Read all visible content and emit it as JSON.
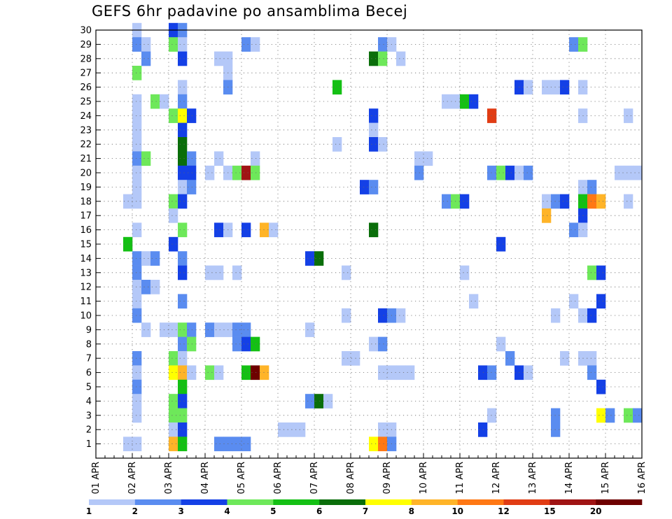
{
  "chart_data": {
    "type": "heatmap",
    "title": "GEFS 6hr padavine po ansamblima Becej",
    "xlabel": "",
    "ylabel": "",
    "x_ticks": [
      "01 APR",
      "02 APR",
      "03 APR",
      "04 APR",
      "05 APR",
      "06 APR",
      "07 APR",
      "08 APR",
      "09 APR",
      "10 APR",
      "11 APR",
      "12 APR",
      "13 APR",
      "14 APR",
      "15 APR",
      "16 APR"
    ],
    "y_ticks": [
      "1",
      "2",
      "3",
      "4",
      "5",
      "6",
      "7",
      "8",
      "9",
      "10",
      "11",
      "12",
      "13",
      "14",
      "15",
      "16",
      "17",
      "18",
      "19",
      "20",
      "21",
      "22",
      "23",
      "24",
      "25",
      "26",
      "27",
      "28",
      "29",
      "30"
    ],
    "xlim_steps": [
      0,
      60
    ],
    "ylim_members": [
      0,
      30
    ],
    "grid": true,
    "legend_position": "bottom",
    "scale": {
      "boundaries": [
        "1",
        "2",
        "3",
        "4",
        "5",
        "6",
        "7",
        "8",
        "10",
        "12",
        "15",
        "20"
      ],
      "colors": [
        "#b4c8f8",
        "#5a8cf0",
        "#1440e6",
        "#6ee85a",
        "#14c014",
        "#0a6e0a",
        "#ffff00",
        "#ffb428",
        "#ff7814",
        "#e13c14",
        "#a01414",
        "#6e0000"
      ]
    },
    "cells_format": "[step, member, class]",
    "cells": [
      [
        4,
        30,
        0
      ],
      [
        8,
        30,
        2
      ],
      [
        9,
        30,
        1
      ],
      [
        4,
        29,
        1
      ],
      [
        5,
        29,
        0
      ],
      [
        8,
        29,
        3
      ],
      [
        9,
        29,
        0
      ],
      [
        16,
        29,
        1
      ],
      [
        17,
        29,
        0
      ],
      [
        31,
        29,
        1
      ],
      [
        32,
        29,
        0
      ],
      [
        52,
        29,
        1
      ],
      [
        53,
        29,
        3
      ],
      [
        5,
        28,
        1
      ],
      [
        9,
        28,
        2
      ],
      [
        13,
        28,
        0
      ],
      [
        14,
        28,
        0
      ],
      [
        30,
        28,
        5
      ],
      [
        31,
        28,
        3
      ],
      [
        33,
        28,
        0
      ],
      [
        4,
        27,
        3
      ],
      [
        14,
        27,
        0
      ],
      [
        9,
        26,
        0
      ],
      [
        14,
        26,
        1
      ],
      [
        26,
        26,
        4
      ],
      [
        46,
        26,
        2
      ],
      [
        47,
        26,
        0
      ],
      [
        49,
        26,
        0
      ],
      [
        50,
        26,
        0
      ],
      [
        51,
        26,
        2
      ],
      [
        53,
        26,
        0
      ],
      [
        4,
        25,
        0
      ],
      [
        6,
        25,
        3
      ],
      [
        7,
        25,
        0
      ],
      [
        9,
        25,
        1
      ],
      [
        38,
        25,
        0
      ],
      [
        39,
        25,
        0
      ],
      [
        40,
        25,
        4
      ],
      [
        41,
        25,
        2
      ],
      [
        4,
        24,
        0
      ],
      [
        8,
        24,
        3
      ],
      [
        9,
        24,
        6
      ],
      [
        10,
        24,
        2
      ],
      [
        30,
        24,
        2
      ],
      [
        43,
        24,
        9
      ],
      [
        53,
        24,
        0
      ],
      [
        58,
        24,
        0
      ],
      [
        4,
        23,
        0
      ],
      [
        9,
        23,
        2
      ],
      [
        30,
        23,
        0
      ],
      [
        4,
        22,
        0
      ],
      [
        9,
        22,
        5
      ],
      [
        26,
        22,
        0
      ],
      [
        30,
        22,
        2
      ],
      [
        31,
        22,
        0
      ],
      [
        4,
        21,
        1
      ],
      [
        5,
        21,
        3
      ],
      [
        9,
        21,
        5
      ],
      [
        10,
        21,
        1
      ],
      [
        13,
        21,
        0
      ],
      [
        17,
        21,
        0
      ],
      [
        35,
        21,
        0
      ],
      [
        36,
        21,
        0
      ],
      [
        4,
        20,
        0
      ],
      [
        9,
        20,
        2
      ],
      [
        10,
        20,
        2
      ],
      [
        12,
        20,
        0
      ],
      [
        14,
        20,
        0
      ],
      [
        15,
        20,
        3
      ],
      [
        16,
        20,
        10
      ],
      [
        17,
        20,
        3
      ],
      [
        35,
        20,
        1
      ],
      [
        43,
        20,
        1
      ],
      [
        44,
        20,
        3
      ],
      [
        45,
        20,
        2
      ],
      [
        46,
        20,
        0
      ],
      [
        47,
        20,
        1
      ],
      [
        57,
        20,
        0
      ],
      [
        58,
        20,
        0
      ],
      [
        59,
        20,
        0
      ],
      [
        4,
        19,
        0
      ],
      [
        9,
        19,
        0
      ],
      [
        10,
        19,
        1
      ],
      [
        29,
        19,
        2
      ],
      [
        30,
        19,
        1
      ],
      [
        53,
        19,
        0
      ],
      [
        54,
        19,
        1
      ],
      [
        3,
        18,
        0
      ],
      [
        4,
        18,
        0
      ],
      [
        8,
        18,
        3
      ],
      [
        9,
        18,
        2
      ],
      [
        38,
        18,
        1
      ],
      [
        39,
        18,
        3
      ],
      [
        40,
        18,
        2
      ],
      [
        49,
        18,
        0
      ],
      [
        50,
        18,
        1
      ],
      [
        51,
        18,
        2
      ],
      [
        53,
        18,
        4
      ],
      [
        54,
        18,
        8
      ],
      [
        55,
        18,
        7
      ],
      [
        58,
        18,
        0
      ],
      [
        8,
        17,
        0
      ],
      [
        49,
        17,
        7
      ],
      [
        53,
        17,
        2
      ],
      [
        4,
        16,
        0
      ],
      [
        9,
        16,
        3
      ],
      [
        13,
        16,
        2
      ],
      [
        14,
        16,
        0
      ],
      [
        16,
        16,
        2
      ],
      [
        18,
        16,
        7
      ],
      [
        19,
        16,
        0
      ],
      [
        30,
        16,
        5
      ],
      [
        52,
        16,
        1
      ],
      [
        53,
        16,
        0
      ],
      [
        3,
        15,
        4
      ],
      [
        8,
        15,
        2
      ],
      [
        44,
        15,
        2
      ],
      [
        4,
        14,
        1
      ],
      [
        5,
        14,
        0
      ],
      [
        6,
        14,
        1
      ],
      [
        9,
        14,
        1
      ],
      [
        23,
        14,
        2
      ],
      [
        24,
        14,
        5
      ],
      [
        4,
        13,
        1
      ],
      [
        9,
        13,
        2
      ],
      [
        12,
        13,
        0
      ],
      [
        13,
        13,
        0
      ],
      [
        15,
        13,
        0
      ],
      [
        27,
        13,
        0
      ],
      [
        40,
        13,
        0
      ],
      [
        54,
        13,
        3
      ],
      [
        55,
        13,
        2
      ],
      [
        4,
        12,
        0
      ],
      [
        5,
        12,
        1
      ],
      [
        6,
        12,
        0
      ],
      [
        4,
        11,
        0
      ],
      [
        9,
        11,
        1
      ],
      [
        41,
        11,
        0
      ],
      [
        52,
        11,
        0
      ],
      [
        55,
        11,
        2
      ],
      [
        4,
        10,
        1
      ],
      [
        27,
        10,
        0
      ],
      [
        31,
        10,
        2
      ],
      [
        32,
        10,
        1
      ],
      [
        33,
        10,
        0
      ],
      [
        50,
        10,
        0
      ],
      [
        53,
        10,
        0
      ],
      [
        54,
        10,
        2
      ],
      [
        5,
        9,
        0
      ],
      [
        7,
        9,
        0
      ],
      [
        8,
        9,
        0
      ],
      [
        9,
        9,
        3
      ],
      [
        10,
        9,
        1
      ],
      [
        12,
        9,
        1
      ],
      [
        13,
        9,
        0
      ],
      [
        14,
        9,
        0
      ],
      [
        15,
        9,
        1
      ],
      [
        16,
        9,
        1
      ],
      [
        23,
        9,
        0
      ],
      [
        9,
        8,
        1
      ],
      [
        10,
        8,
        3
      ],
      [
        15,
        8,
        1
      ],
      [
        16,
        8,
        2
      ],
      [
        17,
        8,
        4
      ],
      [
        30,
        8,
        0
      ],
      [
        31,
        8,
        1
      ],
      [
        44,
        8,
        0
      ],
      [
        4,
        7,
        1
      ],
      [
        8,
        7,
        3
      ],
      [
        9,
        7,
        0
      ],
      [
        27,
        7,
        0
      ],
      [
        28,
        7,
        0
      ],
      [
        45,
        7,
        1
      ],
      [
        51,
        7,
        0
      ],
      [
        53,
        7,
        0
      ],
      [
        54,
        7,
        0
      ],
      [
        4,
        6,
        0
      ],
      [
        8,
        6,
        6
      ],
      [
        9,
        6,
        7
      ],
      [
        10,
        6,
        0
      ],
      [
        12,
        6,
        3
      ],
      [
        13,
        6,
        0
      ],
      [
        16,
        6,
        4
      ],
      [
        17,
        6,
        11
      ],
      [
        18,
        6,
        7
      ],
      [
        31,
        6,
        0
      ],
      [
        32,
        6,
        0
      ],
      [
        33,
        6,
        0
      ],
      [
        34,
        6,
        0
      ],
      [
        42,
        6,
        2
      ],
      [
        43,
        6,
        1
      ],
      [
        46,
        6,
        2
      ],
      [
        47,
        6,
        0
      ],
      [
        54,
        6,
        1
      ],
      [
        4,
        5,
        1
      ],
      [
        9,
        5,
        4
      ],
      [
        55,
        5,
        2
      ],
      [
        4,
        4,
        0
      ],
      [
        8,
        4,
        3
      ],
      [
        9,
        4,
        2
      ],
      [
        23,
        4,
        1
      ],
      [
        24,
        4,
        5
      ],
      [
        25,
        4,
        0
      ],
      [
        4,
        3,
        0
      ],
      [
        8,
        3,
        3
      ],
      [
        9,
        3,
        3
      ],
      [
        43,
        3,
        0
      ],
      [
        50,
        3,
        1
      ],
      [
        55,
        3,
        6
      ],
      [
        56,
        3,
        1
      ],
      [
        58,
        3,
        3
      ],
      [
        59,
        3,
        1
      ],
      [
        8,
        2,
        0
      ],
      [
        9,
        2,
        2
      ],
      [
        20,
        2,
        0
      ],
      [
        21,
        2,
        0
      ],
      [
        22,
        2,
        0
      ],
      [
        31,
        2,
        0
      ],
      [
        32,
        2,
        0
      ],
      [
        42,
        2,
        2
      ],
      [
        50,
        2,
        1
      ],
      [
        3,
        1,
        0
      ],
      [
        4,
        1,
        0
      ],
      [
        8,
        1,
        7
      ],
      [
        9,
        1,
        4
      ],
      [
        13,
        1,
        1
      ],
      [
        14,
        1,
        1
      ],
      [
        15,
        1,
        1
      ],
      [
        16,
        1,
        1
      ],
      [
        30,
        1,
        6
      ],
      [
        31,
        1,
        8
      ],
      [
        32,
        1,
        1
      ]
    ]
  }
}
